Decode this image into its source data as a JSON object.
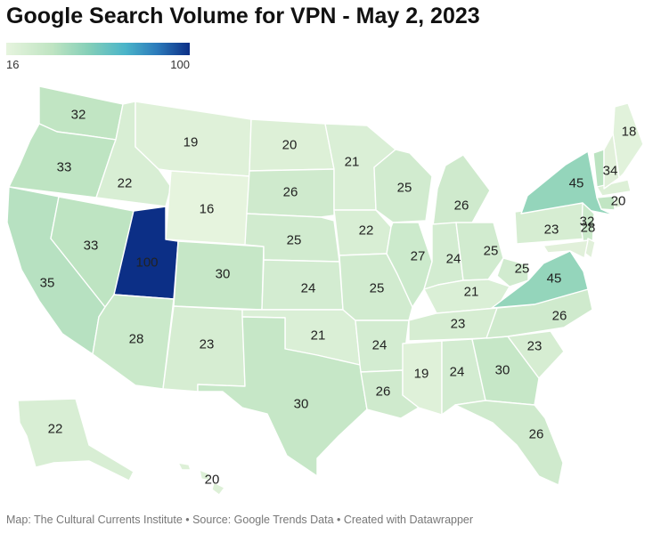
{
  "title": "Google Search Volume for VPN - May 2, 2023",
  "legend": {
    "min_label": "16",
    "max_label": "100",
    "min": 16,
    "max": 100,
    "colors": [
      "#e6f4de",
      "#bfe4c2",
      "#84cfb8",
      "#4ab4c9",
      "#2c7bbb",
      "#0c2f86"
    ]
  },
  "footer": "Map: The Cultural Currents Institute • Source: Google Trends Data • Created with Datawrapper",
  "states": [
    {
      "code": "WA",
      "value": 32
    },
    {
      "code": "OR",
      "value": 33
    },
    {
      "code": "CA",
      "value": 35
    },
    {
      "code": "ID",
      "value": 22
    },
    {
      "code": "NV",
      "value": 33
    },
    {
      "code": "MT",
      "value": 19
    },
    {
      "code": "WY",
      "value": 16
    },
    {
      "code": "UT",
      "value": 100
    },
    {
      "code": "AZ",
      "value": 28
    },
    {
      "code": "CO",
      "value": 30
    },
    {
      "code": "NM",
      "value": 23
    },
    {
      "code": "ND",
      "value": 20
    },
    {
      "code": "SD",
      "value": 26
    },
    {
      "code": "NE",
      "value": 25
    },
    {
      "code": "KS",
      "value": 24
    },
    {
      "code": "OK",
      "value": 21
    },
    {
      "code": "TX",
      "value": 30
    },
    {
      "code": "MN",
      "value": 21
    },
    {
      "code": "IA",
      "value": 22
    },
    {
      "code": "MO",
      "value": 25
    },
    {
      "code": "AR",
      "value": 24
    },
    {
      "code": "LA",
      "value": 26
    },
    {
      "code": "WI",
      "value": 25
    },
    {
      "code": "IL",
      "value": 27
    },
    {
      "code": "MI",
      "value": 26
    },
    {
      "code": "IN",
      "value": 24
    },
    {
      "code": "OH",
      "value": 25
    },
    {
      "code": "KY",
      "value": 21
    },
    {
      "code": "TN",
      "value": 23
    },
    {
      "code": "MS",
      "value": 19
    },
    {
      "code": "AL",
      "value": 24
    },
    {
      "code": "GA",
      "value": 30
    },
    {
      "code": "FL",
      "value": 26
    },
    {
      "code": "SC",
      "value": 23
    },
    {
      "code": "NC",
      "value": 26
    },
    {
      "code": "VA",
      "value": 45
    },
    {
      "code": "WV",
      "value": 25
    },
    {
      "code": "PA",
      "value": 23
    },
    {
      "code": "NY",
      "value": 45
    },
    {
      "code": "NJ",
      "value": 28
    },
    {
      "code": "VT",
      "value": 34
    },
    {
      "code": "ME",
      "value": 18
    },
    {
      "code": "MA",
      "value": 20
    },
    {
      "code": "CT",
      "value": 32
    },
    {
      "code": "AK",
      "value": 22
    },
    {
      "code": "HI",
      "value": 20
    },
    {
      "code": "NH",
      "value": null
    },
    {
      "code": "RI",
      "value": null
    },
    {
      "code": "DE",
      "value": null
    },
    {
      "code": "MD",
      "value": null
    }
  ]
}
